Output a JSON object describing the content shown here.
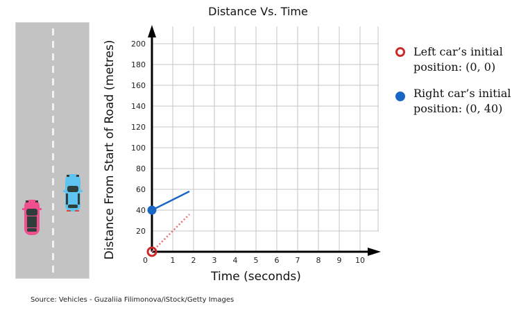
{
  "chart_data": {
    "type": "line",
    "title": "Distance Vs. Time",
    "xlabel": "Time (seconds)",
    "ylabel": "Distance From Start of Road (metres)",
    "xlim": [
      0,
      10
    ],
    "ylim": [
      0,
      200
    ],
    "x_ticks": [
      0,
      1,
      2,
      3,
      4,
      5,
      6,
      7,
      8,
      9,
      10
    ],
    "y_ticks": [
      20,
      40,
      60,
      80,
      100,
      120,
      140,
      160,
      180,
      200
    ],
    "grid": true,
    "legend_position": "right",
    "series": [
      {
        "name": "Left car",
        "style": "dotted",
        "color": "#e07070",
        "x": [
          0,
          1.8
        ],
        "y": [
          0,
          36
        ],
        "start_marker": "open-circle",
        "marker_color": "#cc2a2a"
      },
      {
        "name": "Right car",
        "style": "solid",
        "color": "#1a66c4",
        "x": [
          0,
          1.8
        ],
        "y": [
          40,
          58
        ],
        "start_marker": "filled-circle",
        "marker_color": "#1a66c4"
      }
    ]
  },
  "chart": {
    "title": "Distance Vs. Time",
    "xlabel": "Time (seconds)",
    "ylabel": "Distance From Start of Road (metres)",
    "origin_label": "0"
  },
  "legend": {
    "left_car": {
      "line1": "Left car’s initial",
      "line2": "position: (0, 0)"
    },
    "right_car": {
      "line1": "Right car’s initial",
      "line2": "position: (0, 40)"
    }
  },
  "illustration": {
    "left_car_color": "#ef4f8e",
    "right_car_color": "#5ec3ee",
    "road_color": "#c3c3c3"
  },
  "source": "Source: Vehicles - Guzaliia Filimonova/iStock/Getty Images"
}
